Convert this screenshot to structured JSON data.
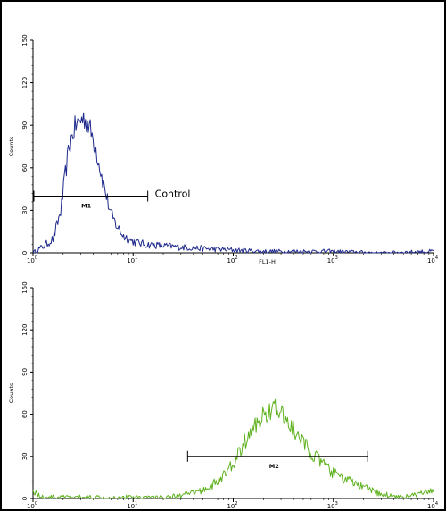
{
  "colors": {
    "top": "#1f2a8c",
    "bottom": "#5fb21f",
    "axis": "#000000"
  },
  "chart_data": [
    {
      "type": "line",
      "scale_x": "log",
      "xlim": [
        1,
        10000
      ],
      "ylim": [
        0,
        150
      ],
      "yticks": [
        "0",
        "30",
        "60",
        "90",
        "120",
        "150"
      ],
      "xticks": [
        {
          "base": "10",
          "exp": "0"
        },
        {
          "base": "10",
          "exp": "1"
        },
        {
          "base": "10",
          "exp": "2"
        },
        {
          "base": "10",
          "exp": "3"
        },
        {
          "base": "10",
          "exp": "4"
        }
      ],
      "ylabel": "Counts",
      "xlabel": "FL1-H",
      "marker": {
        "label": "M1",
        "x_range": [
          1,
          14
        ],
        "y": 40
      },
      "annotation": "Control",
      "series": [
        {
          "color": "#1f2a8c",
          "x": [
            1.0,
            1.3,
            1.6,
            1.9,
            2.1,
            2.3,
            2.6,
            2.9,
            3.2,
            3.5,
            3.8,
            4.2,
            4.6,
            5.0,
            5.5,
            6.0,
            7.0,
            8.0,
            10.0,
            13.0,
            20.0,
            30.0,
            50.0,
            100.0,
            200.0,
            500.0,
            1000.0,
            3000.0,
            10000.0
          ],
          "values": [
            0,
            5,
            10,
            30,
            55,
            75,
            88,
            93,
            95,
            92,
            85,
            75,
            62,
            50,
            38,
            27,
            18,
            12,
            8,
            6,
            5,
            4,
            3,
            2,
            1,
            1,
            1,
            0,
            1
          ]
        }
      ]
    },
    {
      "type": "line",
      "scale_x": "log",
      "xlim": [
        1,
        10000
      ],
      "ylim": [
        0,
        150
      ],
      "yticks": [
        "0",
        "30",
        "60",
        "90",
        "120",
        "150"
      ],
      "xticks": [
        {
          "base": "10",
          "exp": "0"
        },
        {
          "base": "10",
          "exp": "1"
        },
        {
          "base": "10",
          "exp": "2"
        },
        {
          "base": "10",
          "exp": "3"
        },
        {
          "base": "10",
          "exp": "4"
        }
      ],
      "ylabel": "Counts",
      "marker": {
        "label": "M2",
        "x_range": [
          35,
          2200
        ],
        "y": 30
      },
      "series": [
        {
          "color": "#5fb21f",
          "x": [
            1.0,
            1.2,
            2.0,
            5.0,
            10.0,
            20.0,
            30.0,
            40.0,
            50.0,
            70.0,
            90.0,
            110.0,
            130.0,
            160.0,
            190.0,
            220.0,
            260.0,
            300.0,
            360.0,
            430.0,
            520.0,
            650.0,
            800.0,
            1000.0,
            1300.0,
            1700.0,
            2300.0,
            3000.0,
            5000.0,
            10000.0
          ],
          "values": [
            6,
            1,
            1,
            1,
            1,
            1,
            2,
            4,
            6,
            12,
            20,
            30,
            40,
            50,
            57,
            62,
            64,
            60,
            54,
            45,
            38,
            30,
            24,
            18,
            14,
            10,
            6,
            3,
            1,
            5
          ]
        }
      ]
    }
  ]
}
